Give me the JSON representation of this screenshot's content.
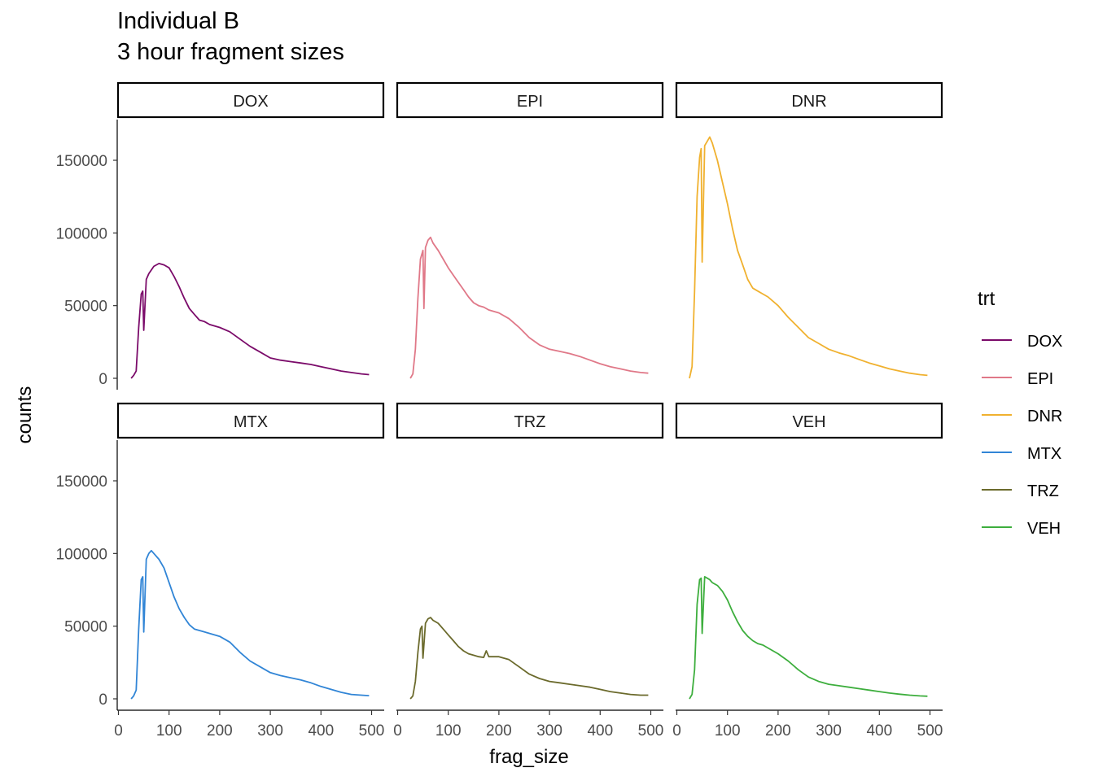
{
  "title": "Individual B",
  "subtitle": "3 hour fragment sizes",
  "legend": {
    "title": "trt",
    "items": [
      {
        "label": "DOX",
        "color": "#7B0B6A"
      },
      {
        "label": "EPI",
        "color": "#E07888"
      },
      {
        "label": "DNR",
        "color": "#F0B12F"
      },
      {
        "label": "MTX",
        "color": "#3185D6"
      },
      {
        "label": "TRZ",
        "color": "#6B6A2C"
      },
      {
        "label": "VEH",
        "color": "#3DAE3D"
      }
    ]
  },
  "chart_data": {
    "type": "line",
    "xlabel": "frag_size",
    "ylabel": "counts",
    "xlim": [
      0,
      500
    ],
    "ylim": [
      0,
      170000
    ],
    "x_ticks": [
      0,
      100,
      200,
      300,
      400,
      500
    ],
    "x_tick_labels": [
      "0",
      "100",
      "200",
      "300",
      "400",
      "500"
    ],
    "y_ticks": [
      0,
      50000,
      100000,
      150000
    ],
    "y_tick_labels": [
      "0",
      "50000",
      "100000",
      "150000"
    ],
    "grid": false,
    "legend_position": "right",
    "facets": [
      {
        "name": "DOX",
        "color": "#7B0B6A",
        "x": [
          25,
          30,
          35,
          40,
          45,
          48,
          50,
          55,
          60,
          70,
          80,
          90,
          100,
          110,
          120,
          130,
          140,
          150,
          160,
          170,
          180,
          200,
          220,
          240,
          260,
          280,
          300,
          320,
          340,
          360,
          380,
          400,
          420,
          440,
          460,
          480,
          495
        ],
        "y": [
          0,
          2000,
          5000,
          35000,
          58000,
          60000,
          33000,
          68000,
          72000,
          77000,
          79000,
          78000,
          76000,
          70000,
          63000,
          55000,
          48000,
          44000,
          40000,
          39000,
          37000,
          35000,
          32000,
          27000,
          22000,
          18000,
          14000,
          12500,
          11500,
          10500,
          9500,
          8000,
          6500,
          5000,
          4000,
          3000,
          2500
        ]
      },
      {
        "name": "EPI",
        "color": "#E07888",
        "x": [
          25,
          30,
          35,
          40,
          45,
          50,
          52,
          55,
          60,
          65,
          70,
          80,
          90,
          100,
          110,
          120,
          130,
          140,
          150,
          160,
          170,
          180,
          200,
          220,
          240,
          260,
          280,
          300,
          320,
          340,
          360,
          380,
          400,
          420,
          440,
          460,
          480,
          495
        ],
        "y": [
          0,
          3000,
          20000,
          55000,
          82000,
          88000,
          48000,
          90000,
          95000,
          97000,
          93000,
          88000,
          82000,
          76000,
          71000,
          66000,
          61000,
          56000,
          52000,
          50000,
          49000,
          47000,
          45000,
          41000,
          35000,
          28000,
          23000,
          20000,
          18500,
          17000,
          15000,
          12500,
          10000,
          8000,
          6500,
          5000,
          4000,
          3500
        ]
      },
      {
        "name": "DNR",
        "color": "#F0B12F",
        "x": [
          25,
          30,
          35,
          40,
          45,
          48,
          50,
          55,
          60,
          65,
          70,
          80,
          90,
          100,
          110,
          120,
          130,
          140,
          150,
          160,
          170,
          180,
          200,
          220,
          240,
          260,
          280,
          300,
          320,
          340,
          360,
          380,
          400,
          420,
          440,
          460,
          480,
          495
        ],
        "y": [
          0,
          8000,
          60000,
          125000,
          152000,
          158000,
          80000,
          160000,
          163000,
          166000,
          162000,
          150000,
          135000,
          120000,
          103000,
          88000,
          78000,
          68000,
          62000,
          60000,
          58000,
          56000,
          50000,
          42000,
          35000,
          28000,
          24000,
          20000,
          17500,
          15500,
          13000,
          10500,
          8500,
          6500,
          5000,
          3500,
          2500,
          2000
        ]
      },
      {
        "name": "MTX",
        "color": "#3185D6",
        "x": [
          25,
          30,
          35,
          40,
          45,
          48,
          50,
          55,
          60,
          65,
          70,
          80,
          90,
          100,
          110,
          120,
          130,
          140,
          150,
          160,
          170,
          180,
          200,
          220,
          240,
          260,
          280,
          300,
          320,
          340,
          360,
          380,
          400,
          420,
          440,
          460,
          480,
          495
        ],
        "y": [
          0,
          2000,
          6000,
          48000,
          82000,
          84000,
          46000,
          96000,
          100000,
          102000,
          100000,
          96000,
          90000,
          80000,
          70000,
          62000,
          56000,
          51000,
          48000,
          47000,
          46000,
          45000,
          43000,
          39000,
          32000,
          26000,
          22000,
          18000,
          16000,
          14500,
          13000,
          11000,
          8500,
          6500,
          4500,
          3000,
          2500,
          2200
        ]
      },
      {
        "name": "TRZ",
        "color": "#6B6A2C",
        "x": [
          25,
          30,
          35,
          40,
          45,
          48,
          50,
          55,
          60,
          65,
          70,
          80,
          90,
          100,
          110,
          120,
          130,
          140,
          150,
          160,
          170,
          175,
          180,
          200,
          220,
          240,
          260,
          280,
          300,
          320,
          340,
          360,
          380,
          400,
          420,
          440,
          460,
          480,
          495
        ],
        "y": [
          0,
          2000,
          12000,
          32000,
          48000,
          50000,
          28000,
          52000,
          55000,
          56000,
          54000,
          52000,
          48000,
          44000,
          40000,
          36000,
          33000,
          31000,
          30000,
          29000,
          28500,
          33000,
          29000,
          29000,
          27000,
          22000,
          17000,
          14000,
          12000,
          11000,
          10000,
          9000,
          8000,
          6500,
          5000,
          4000,
          3000,
          2500,
          2500
        ]
      },
      {
        "name": "VEH",
        "color": "#3DAE3D",
        "x": [
          25,
          30,
          35,
          40,
          45,
          48,
          50,
          55,
          60,
          65,
          70,
          80,
          90,
          100,
          110,
          120,
          130,
          140,
          150,
          160,
          170,
          180,
          200,
          220,
          240,
          260,
          280,
          300,
          320,
          340,
          360,
          380,
          400,
          420,
          440,
          460,
          480,
          495
        ],
        "y": [
          0,
          3000,
          20000,
          65000,
          82000,
          83000,
          45000,
          84000,
          83000,
          82000,
          80000,
          78000,
          74000,
          68000,
          60000,
          53000,
          47000,
          43000,
          40000,
          38000,
          37000,
          35000,
          31000,
          26000,
          20000,
          15000,
          12000,
          10000,
          9000,
          8000,
          7000,
          6000,
          5000,
          4000,
          3200,
          2500,
          2000,
          1800
        ]
      }
    ]
  }
}
